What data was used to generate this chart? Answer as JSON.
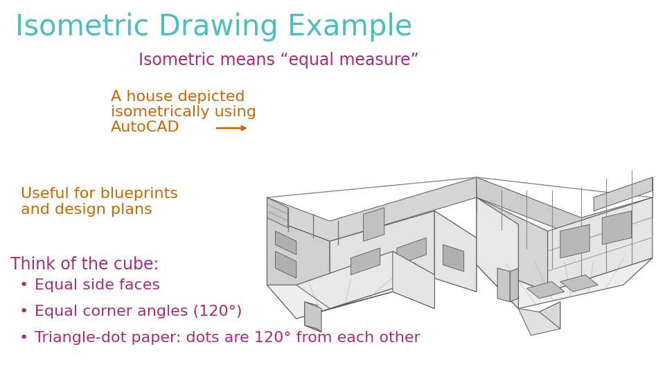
{
  "title": "Isometric Drawing Example",
  "title_color": "#4BBFBF",
  "subtitle": "Isometric means “equal measure”",
  "subtitle_color": "#AA2A7A",
  "text1_line1": "A house depicted",
  "text1_line2": "isometrically using",
  "text1_line3": "AutoCAD",
  "text1_color": "#CC6600",
  "arrow_color": "#CC6600",
  "text2_line1": "Useful for blueprints",
  "text2_line2": "and design plans",
  "text2_color": "#CC6600",
  "text3_header": "Think of the cube:",
  "text3_color": "#AA2A7A",
  "bullets": [
    "Equal side faces",
    "Equal corner angles (120°)",
    "Triangle-dot paper: dots are 120° from each other"
  ],
  "bullet_color": "#AA2A7A",
  "background_color": "#FFFFFF",
  "title_fontsize": 30,
  "subtitle_fontsize": 17,
  "text1_fontsize": 16,
  "text2_fontsize": 16,
  "text3_fontsize": 17,
  "bullet_fontsize": 16
}
